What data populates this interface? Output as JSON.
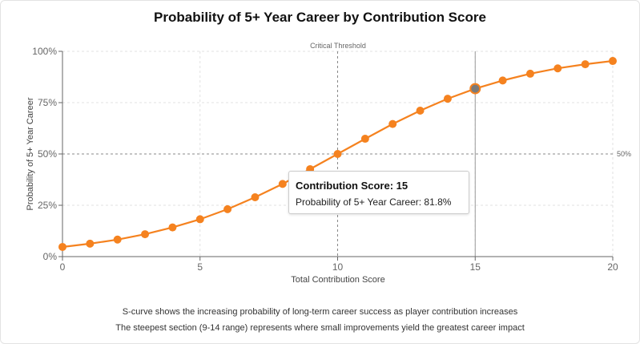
{
  "chart_data": {
    "type": "line",
    "title": "Probability of 5+ Year Career by Contribution Score",
    "xlabel": "Total Contribution Score",
    "ylabel": "Probability of 5+ Year Career",
    "xlim": [
      0,
      20
    ],
    "ylim": [
      0,
      1
    ],
    "x_ticks": [
      "0",
      "5",
      "10",
      "15",
      "20"
    ],
    "y_ticks": [
      "0%",
      "25%",
      "50%",
      "75%",
      "100%"
    ],
    "grid": true,
    "x": [
      0,
      1,
      2,
      3,
      4,
      5,
      6,
      7,
      8,
      9,
      10,
      11,
      12,
      13,
      14,
      15,
      16,
      17,
      18,
      19,
      20
    ],
    "series": [
      {
        "values": [
          0.047,
          0.063,
          0.083,
          0.109,
          0.142,
          0.182,
          0.231,
          0.289,
          0.354,
          0.426,
          0.5,
          0.574,
          0.646,
          0.711,
          0.769,
          0.818,
          0.858,
          0.891,
          0.917,
          0.937,
          0.953
        ]
      }
    ],
    "reference_lines": {
      "vertical": {
        "x": 10,
        "label": "Critical Threshold"
      },
      "horizontal": {
        "y": 0.5,
        "label": "50%"
      }
    },
    "highlight_point": {
      "x": 15,
      "y": 0.818
    },
    "colors": {
      "line": "#f5821f",
      "highlight": "#7a7a7a",
      "grid": "#e2e2e2",
      "reference": "#888888"
    }
  },
  "tooltip": {
    "title": "Contribution Score: 15",
    "line": "Probability of 5+ Year Career: 81.8%"
  },
  "captions": [
    "S-curve shows the increasing probability of long-term career success as player contribution increases",
    "The steepest section (9-14 range) represents where small improvements yield the greatest career impact"
  ]
}
